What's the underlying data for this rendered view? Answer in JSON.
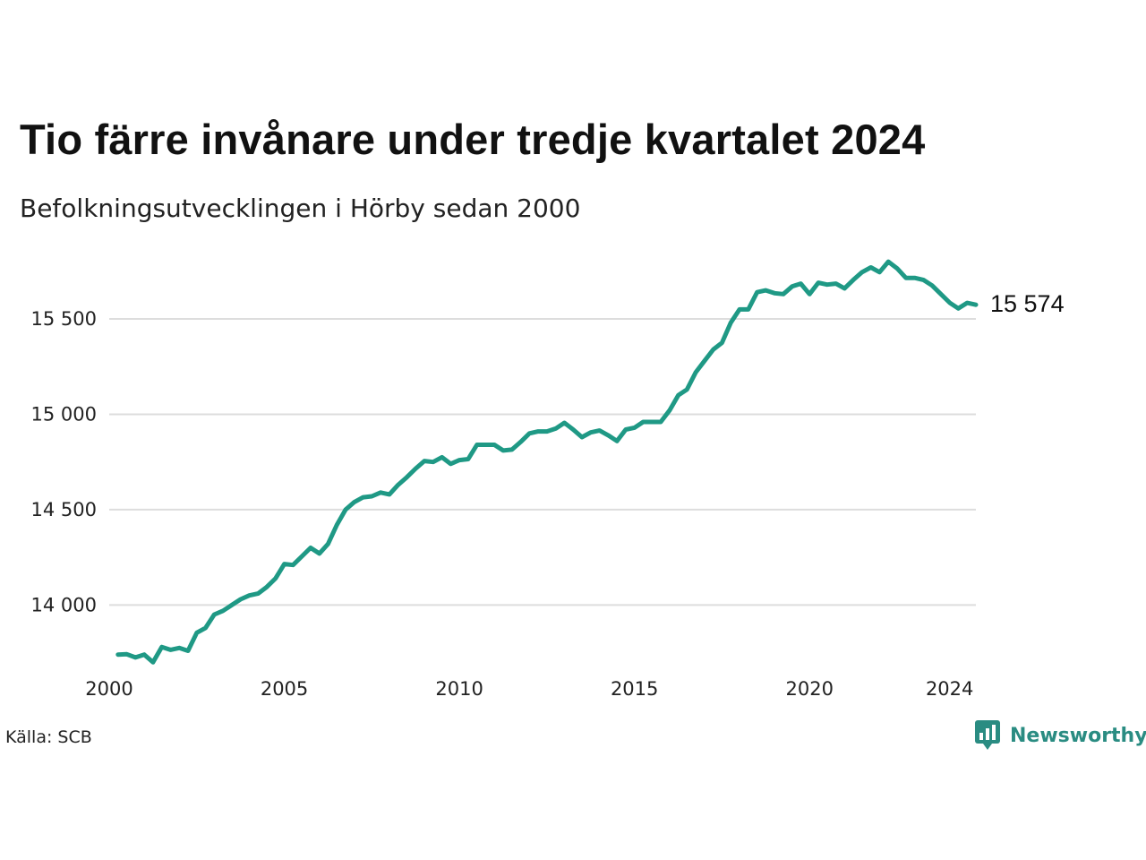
{
  "header": {
    "title": "Tio färre invånare under tredje kvartalet 2024",
    "subtitle": "Befolkningsutvecklingen i Hörby sedan 2000"
  },
  "footer": {
    "source": "Källa: SCB",
    "brand": "Newsworthy",
    "brand_icon": "newsworthy-logo-icon"
  },
  "colors": {
    "line": "#1f9985",
    "grid": "#dddddd",
    "brand": "#2a8c82"
  },
  "chart_data": {
    "type": "line",
    "title": "Tio färre invånare under tredje kvartalet 2024",
    "subtitle": "Befolkningsutvecklingen i Hörby sedan 2000",
    "xlabel": "",
    "ylabel": "",
    "x_ticks": [
      "2000",
      "2005",
      "2010",
      "2015",
      "2020",
      "2024"
    ],
    "y_ticks": [
      {
        "value": 14000,
        "label": "14 000"
      },
      {
        "value": 14500,
        "label": "14 500"
      },
      {
        "value": 15000,
        "label": "15 000"
      },
      {
        "value": 15500,
        "label": "15 500"
      }
    ],
    "xlim": [
      2000,
      2024.75
    ],
    "ylim": [
      13720,
      15810
    ],
    "grid": true,
    "last_value_label": "15 574",
    "series": [
      {
        "x": [
          2000.25,
          2000.5,
          2000.75,
          2001,
          2001.25,
          2001.5,
          2001.75,
          2002,
          2002.25,
          2002.5,
          2002.75,
          2003,
          2003.25,
          2003.5,
          2003.75,
          2004,
          2004.25,
          2004.5,
          2004.75,
          2005,
          2005.25,
          2005.5,
          2005.75,
          2006,
          2006.25,
          2006.5,
          2006.75,
          2007,
          2007.25,
          2007.5,
          2007.75,
          2008,
          2008.25,
          2008.5,
          2008.75,
          2009,
          2009.25,
          2009.5,
          2009.75,
          2010,
          2010.25,
          2010.5,
          2010.75,
          2011,
          2011.25,
          2011.5,
          2011.75,
          2012,
          2012.25,
          2012.5,
          2012.75,
          2013,
          2013.25,
          2013.5,
          2013.75,
          2014,
          2014.25,
          2014.5,
          2014.75,
          2015,
          2015.25,
          2015.5,
          2015.75,
          2016,
          2016.25,
          2016.5,
          2016.75,
          2017,
          2017.25,
          2017.5,
          2017.75,
          2018,
          2018.25,
          2018.5,
          2018.75,
          2019,
          2019.25,
          2019.5,
          2019.75,
          2020,
          2020.25,
          2020.5,
          2020.75,
          2021,
          2021.25,
          2021.5,
          2021.75,
          2022,
          2022.25,
          2022.5,
          2022.75,
          2023,
          2023.25,
          2023.5,
          2023.75,
          2024,
          2024.25,
          2024.5,
          2024.75
        ],
        "values": [
          13740,
          13742,
          13725,
          13740,
          13700,
          13780,
          13765,
          13775,
          13760,
          13855,
          13880,
          13950,
          13970,
          14000,
          14030,
          14050,
          14060,
          14095,
          14140,
          14215,
          14210,
          14255,
          14300,
          14270,
          14320,
          14420,
          14500,
          14540,
          14565,
          14570,
          14590,
          14580,
          14630,
          14670,
          14715,
          14755,
          14750,
          14775,
          14740,
          14760,
          14765,
          14840,
          14840,
          14840,
          14810,
          14815,
          14855,
          14900,
          14910,
          14910,
          14925,
          14955,
          14920,
          14880,
          14905,
          14915,
          14890,
          14860,
          14920,
          14930,
          14960,
          14960,
          14960,
          15020,
          15100,
          15130,
          15220,
          15280,
          15340,
          15375,
          15480,
          15550,
          15550,
          15640,
          15650,
          15635,
          15630,
          15670,
          15685,
          15630,
          15690,
          15680,
          15685,
          15660,
          15705,
          15745,
          15770,
          15745,
          15800,
          15765,
          15715,
          15715,
          15705,
          15675,
          15630,
          15585,
          15555,
          15584,
          15574
        ]
      }
    ]
  }
}
